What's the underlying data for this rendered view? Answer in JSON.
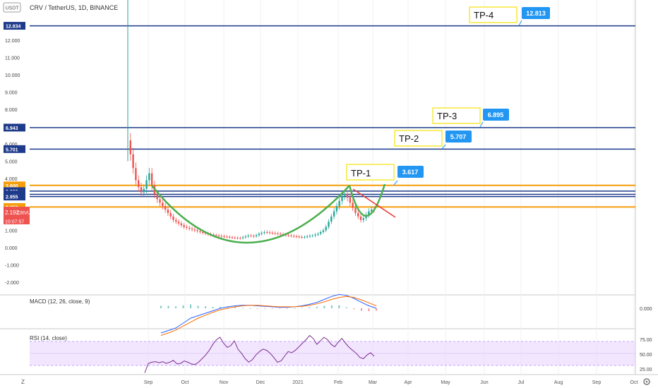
{
  "header": {
    "currency": "USDT",
    "title": "CRV / TetherUS, 1D, BINANCE"
  },
  "chart_data": {
    "type": "candlestick",
    "symbol": "CRV / TetherUS",
    "interval": "1D",
    "exchange": "BINANCE",
    "y_ticks": [
      "-2.000",
      "-1.000",
      "0.000",
      "1.000",
      "2.000",
      "3.000",
      "4.000",
      "5.000",
      "6.000",
      "7.000",
      "8.000",
      "9.000",
      "10.000",
      "11.000",
      "12.000"
    ],
    "x_ticks": [
      "Sep",
      "Oct",
      "Nov",
      "Dec",
      "2021",
      "Feb",
      "Mar",
      "Apr",
      "May",
      "Jun",
      "Jul",
      "Aug",
      "Sep",
      "Oct"
    ],
    "horizontal_levels": [
      {
        "value": 12.834,
        "label": "12.834",
        "color": "#1e3a8a"
      },
      {
        "value": 6.943,
        "label": "6.943",
        "color": "#1e3a8a"
      },
      {
        "value": 5.701,
        "label": "5.701",
        "color": "#1e3a8a"
      },
      {
        "value": 3.6,
        "label": "3.600",
        "color": "#f59e0b"
      },
      {
        "value": 3.269,
        "label": "3.269",
        "color": "#1e3a8a"
      },
      {
        "value": 3.08,
        "label": "3.080",
        "color": "#1e3a8a"
      },
      {
        "value": 2.955,
        "label": "2.955",
        "color": "#1e3a8a"
      },
      {
        "value": 2.35,
        "label": "2.350",
        "color": "#f59e0b"
      }
    ],
    "current_price": {
      "symbol": "CRVUSDT",
      "value": "2.192",
      "countdown": "10:07:57",
      "color": "#ef5350"
    },
    "targets": [
      {
        "name": "TP-1",
        "value": "3.617"
      },
      {
        "name": "TP-2",
        "value": "5.707"
      },
      {
        "name": "TP-3",
        "value": "6.895"
      },
      {
        "name": "TP-4",
        "value": "12.813"
      }
    ],
    "close_series": [
      6.2,
      5.4,
      4.6,
      3.9,
      3.5,
      3.2,
      3.4,
      3.9,
      4.3,
      3.6,
      3.1,
      2.8,
      2.6,
      2.4,
      2.2,
      2.0,
      1.8,
      1.6,
      1.5,
      1.4,
      1.3,
      1.2,
      1.15,
      1.1,
      1.05,
      1.0,
      0.95,
      0.9,
      0.85,
      0.82,
      0.78,
      0.75,
      0.72,
      0.7,
      0.68,
      0.66,
      0.64,
      0.62,
      0.6,
      0.58,
      0.57,
      0.56,
      0.55,
      0.6,
      0.65,
      0.7,
      0.68,
      0.66,
      0.72,
      0.8,
      0.85,
      0.9,
      0.88,
      0.86,
      0.84,
      0.82,
      0.8,
      0.78,
      0.75,
      0.72,
      0.7,
      0.68,
      0.66,
      0.64,
      0.62,
      0.6,
      0.62,
      0.65,
      0.68,
      0.7,
      0.75,
      0.8,
      0.9,
      1.0,
      1.2,
      1.5,
      1.8,
      2.1,
      2.4,
      2.7,
      3.0,
      3.1,
      2.9,
      2.6,
      2.3,
      2.0,
      1.8,
      1.6,
      1.7,
      1.9,
      2.1,
      2.2,
      2.192
    ]
  },
  "indicators": {
    "macd": {
      "label": "MACD (12, 26, close, 9)",
      "value_label": "0.000",
      "macd_line": [
        -0.5,
        -0.45,
        -0.4,
        -0.3,
        -0.2,
        -0.15,
        -0.1,
        -0.05,
        0,
        0.03,
        0.05,
        0.06,
        0.06,
        0.05,
        0.04,
        0.03,
        0.02,
        0.02,
        0.03,
        0.05,
        0.08,
        0.12,
        0.18,
        0.24,
        0.28,
        0.26,
        0.2,
        0.12,
        0.05,
        0.0
      ],
      "signal_line": [
        -0.55,
        -0.5,
        -0.44,
        -0.36,
        -0.28,
        -0.2,
        -0.14,
        -0.08,
        -0.03,
        0.0,
        0.03,
        0.05,
        0.06,
        0.06,
        0.05,
        0.04,
        0.03,
        0.03,
        0.03,
        0.04,
        0.06,
        0.09,
        0.13,
        0.18,
        0.22,
        0.24,
        0.22,
        0.17,
        0.11,
        0.05
      ]
    },
    "rsi": {
      "label": "RSI (14, close)",
      "ticks": [
        "75.00",
        "50.00",
        "25.00"
      ],
      "upper": 70,
      "lower": 30,
      "values": [
        22,
        38,
        40,
        41,
        39,
        41,
        38,
        40,
        43,
        37,
        38,
        42,
        40,
        37,
        36,
        40,
        46,
        52,
        60,
        70,
        78,
        82,
        72,
        65,
        68,
        76,
        62,
        55,
        46,
        40,
        44,
        52,
        58,
        62,
        60,
        55,
        48,
        40,
        42,
        50,
        58,
        56,
        60,
        66,
        72,
        78,
        85,
        80,
        70,
        76,
        82,
        78,
        70,
        66,
        74,
        80,
        72,
        65,
        60,
        55,
        48,
        46,
        52,
        56,
        50
      ]
    },
    "rsi_fill": "#e9d5ff",
    "rsi_line": "#7b2d8e"
  },
  "bottom_left": "Z",
  "bottom_right_icon": "gear-icon",
  "colors": {
    "up": "#26a69a",
    "down": "#ef5350",
    "cup": "#4caf50",
    "trend": "#e53935",
    "level_blue": "#1e3a8a",
    "level_orange": "#f59e0b",
    "label_bg": "#2196f3",
    "box_border": "#f5e83a"
  }
}
